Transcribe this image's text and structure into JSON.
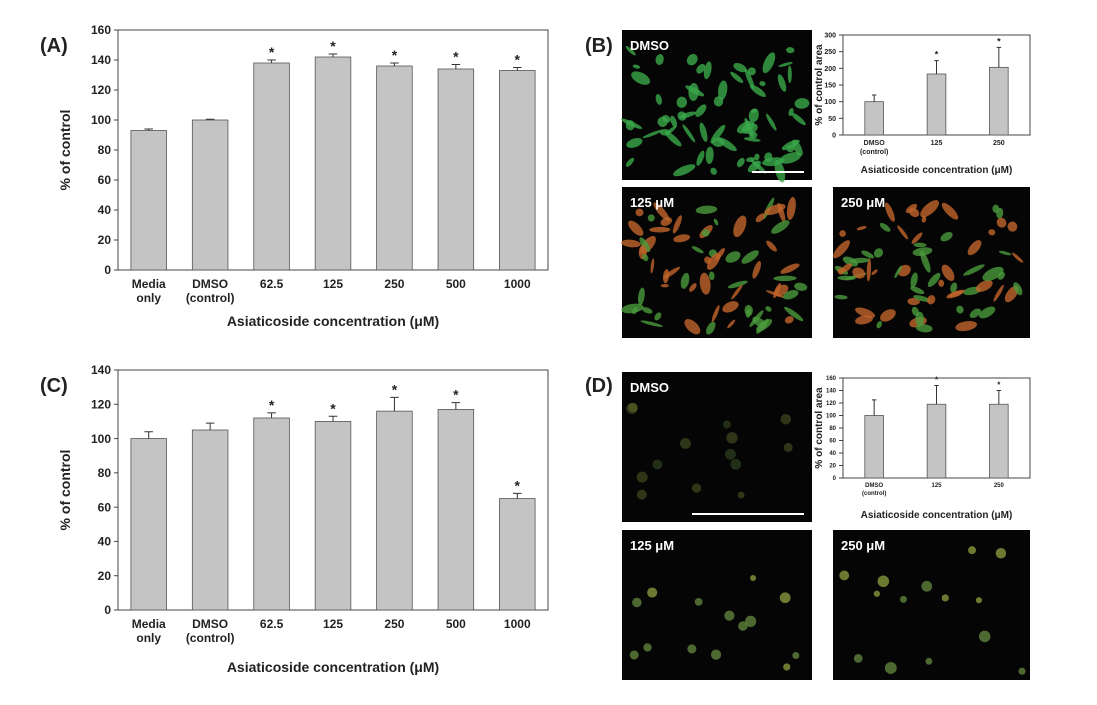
{
  "chart_data": [
    {
      "type": "bar",
      "panel": "(A)",
      "y_label": "% of control",
      "x_label": "Asiaticoside concentration (μM)",
      "categories": [
        "Media only",
        "DMSO (control)",
        "62.5",
        "125",
        "250",
        "500",
        "1000"
      ],
      "values": [
        93,
        100,
        138,
        142,
        136,
        134,
        133
      ],
      "errors": [
        1,
        0.5,
        2,
        2,
        2,
        3,
        2
      ],
      "markers": [
        null,
        null,
        "*",
        "*",
        "*",
        "*",
        "*"
      ],
      "color": "#c4c4c4",
      "ylim": [
        0,
        160
      ],
      "yticks": [
        0,
        20,
        40,
        60,
        80,
        100,
        120,
        140,
        160
      ]
    },
    {
      "type": "bar",
      "panel": "(B)",
      "images": [
        "DMSO",
        "125 μM",
        "250 μM"
      ],
      "y_label": "% of control area",
      "x_label": "Asiaticoside concentration (μM)",
      "categories": [
        "DMSO (control)",
        "125",
        "250"
      ],
      "values": [
        100,
        183,
        203
      ],
      "errors": [
        20,
        40,
        60
      ],
      "markers": [
        null,
        "*",
        "*"
      ],
      "color": "#c4c4c4",
      "ylim": [
        0,
        300
      ],
      "yticks": [
        0,
        50,
        100,
        150,
        200,
        250,
        300
      ]
    },
    {
      "type": "bar",
      "panel": "(C)",
      "y_label": "% of control",
      "x_label": "Asiaticoside concentration (μM)",
      "categories": [
        "Media only",
        "DMSO (control)",
        "62.5",
        "125",
        "250",
        "500",
        "1000"
      ],
      "values": [
        100,
        105,
        112,
        110,
        116,
        117,
        65
      ],
      "errors": [
        4,
        4,
        3,
        3,
        8,
        4,
        3
      ],
      "markers": [
        null,
        null,
        "*",
        "*",
        "*",
        "*",
        "*"
      ],
      "color": "#c4c4c4",
      "ylim": [
        0,
        140
      ],
      "yticks": [
        0,
        20,
        40,
        60,
        80,
        100,
        120,
        140
      ]
    },
    {
      "type": "bar",
      "panel": "(D)",
      "images": [
        "DMSO",
        "125 μM",
        "250 μM"
      ],
      "y_label": "% of control area",
      "x_label": "Asiaticoside concentration (μM)",
      "categories": [
        "DMSO (control)",
        "125",
        "250"
      ],
      "values": [
        100,
        118,
        118
      ],
      "errors": [
        25,
        30,
        22
      ],
      "markers": [
        null,
        "*",
        "*"
      ],
      "color": "#c4c4c4",
      "ylim": [
        0,
        160
      ],
      "yticks": [
        0,
        20,
        40,
        60,
        80,
        100,
        120,
        140,
        160
      ]
    }
  ]
}
